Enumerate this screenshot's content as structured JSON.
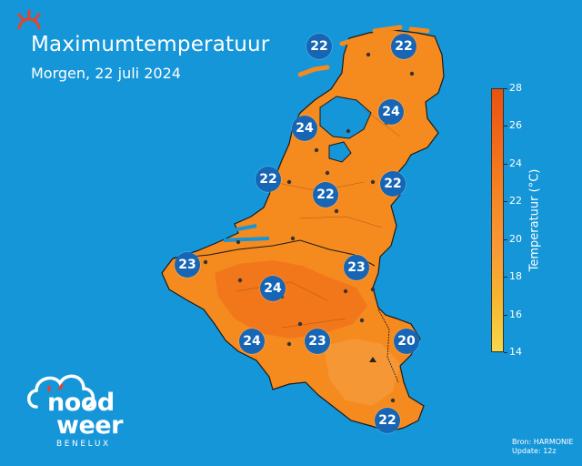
{
  "header": {
    "title": "Maximumtemperatuur",
    "subtitle": "Morgen, 22 juli 2024"
  },
  "colors": {
    "background": "#1596d8",
    "land": "#f58a1f",
    "land_warm": "#f0701a",
    "badge": "#1766b5",
    "logo_accent": "#e5432a"
  },
  "icons": [
    "sun-icon",
    "cloud-logo-icon",
    "mountain-marker-icon"
  ],
  "legend": {
    "label": "Temperatuur (°C)",
    "min": 14,
    "max": 28,
    "ticks": [
      "28",
      "26",
      "24",
      "22",
      "20",
      "18",
      "16",
      "14"
    ]
  },
  "cities": [
    {
      "value": "22"
    },
    {
      "value": "22"
    },
    {
      "value": "24"
    },
    {
      "value": "24"
    },
    {
      "value": "22"
    },
    {
      "value": "22"
    },
    {
      "value": "22"
    },
    {
      "value": "23"
    },
    {
      "value": "23"
    },
    {
      "value": "24"
    },
    {
      "value": "24"
    },
    {
      "value": "23"
    },
    {
      "value": "20"
    },
    {
      "value": "22"
    }
  ],
  "logo": {
    "line1": "nood",
    "line2": "weer",
    "tagline": "BENELUX"
  },
  "source": {
    "line1": "Bron: HARMONIE",
    "line2": "Update: 12z"
  }
}
